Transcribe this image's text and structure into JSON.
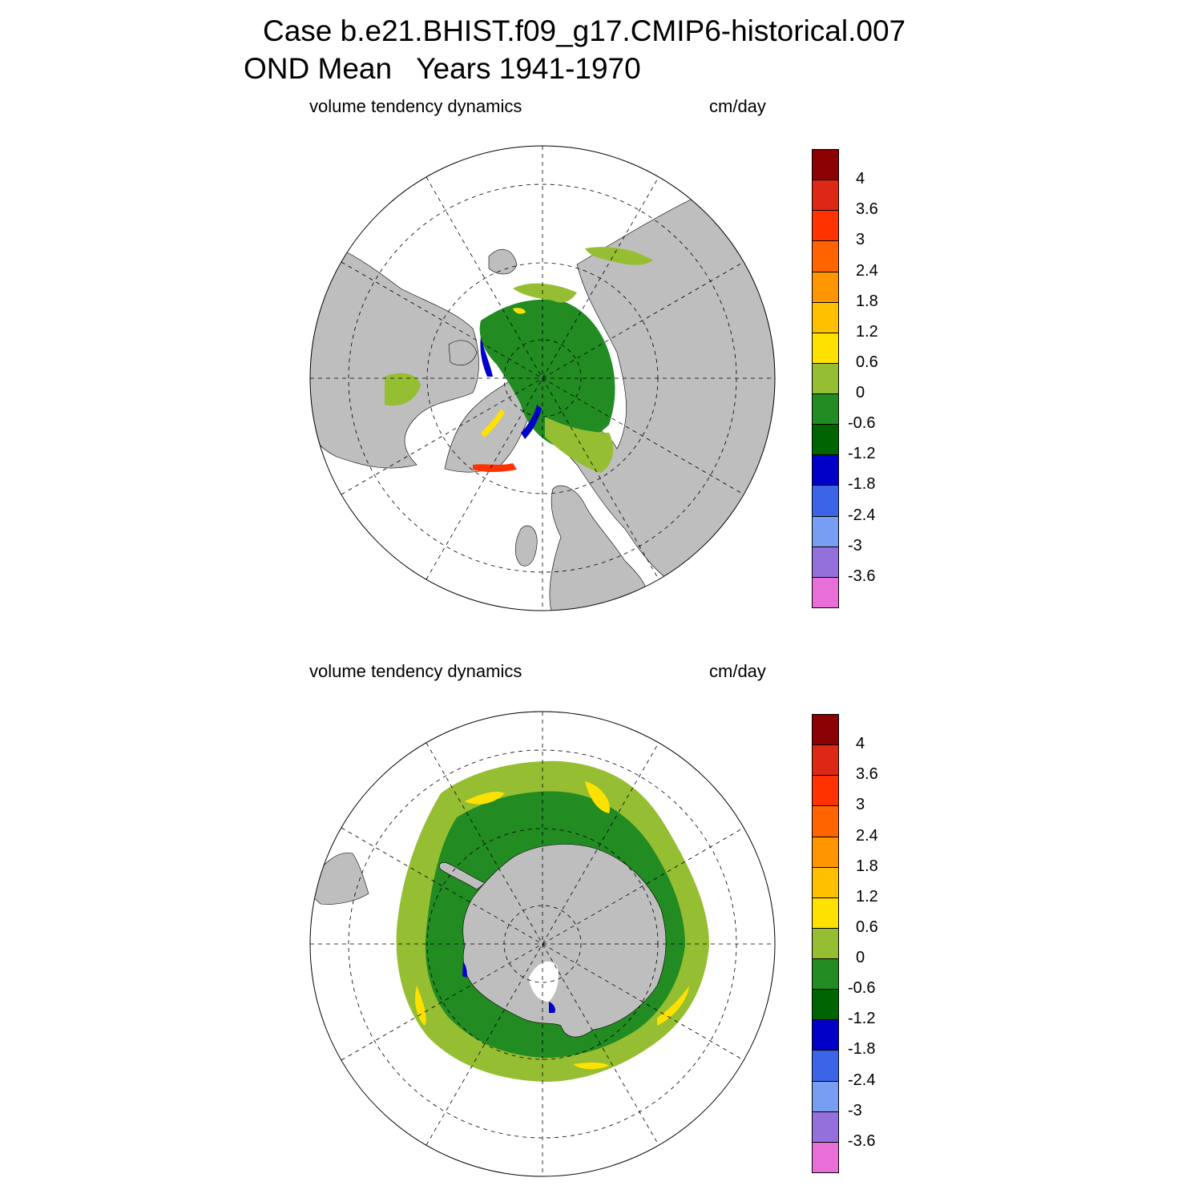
{
  "title_line1": "Case b.e21.BHIST.f09_g17.CMIP6-historical.007",
  "title_line2": "OND Mean   Years 1941-1970",
  "panels": [
    {
      "variable": "volume tendency dynamics",
      "units": "cm/day",
      "hemisphere": "north"
    },
    {
      "variable": "volume tendency dynamics",
      "units": "cm/day",
      "hemisphere": "south"
    }
  ],
  "colorbar": {
    "colors": [
      "#e86fd8",
      "#9370db",
      "#779ef2",
      "#3c64e6",
      "#0000c8",
      "#006400",
      "#228b22",
      "#96be32",
      "#ffe100",
      "#ffc000",
      "#ff9600",
      "#ff6400",
      "#ff3200",
      "#dc2814",
      "#8b0000"
    ],
    "tick_labels": [
      "-3.6",
      "-3",
      "-2.4",
      "-1.8",
      "-1.2",
      "-0.6",
      "0",
      "0.6",
      "1.2",
      "1.8",
      "2.4",
      "3",
      "3.6",
      "4"
    ]
  },
  "map_colors": {
    "land": "#bebebe",
    "missing": "#ffffff",
    "pos_small": "#96be32",
    "neg_small": "#228b22",
    "neg_mid": "#006400",
    "neg_large": "#0000c8",
    "pos_mid": "#ffe100",
    "pos_high": "#ffc000",
    "pos_max": "#ff3200"
  }
}
